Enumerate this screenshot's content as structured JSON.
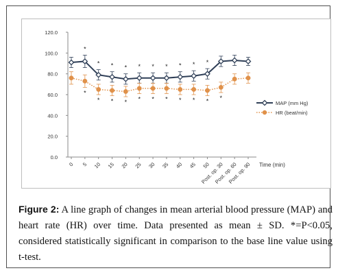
{
  "chart_data": {
    "type": "line",
    "categories": [
      "0",
      "5",
      "10",
      "15",
      "20",
      "25",
      "30",
      "35",
      "40",
      "45",
      "50",
      "Post. op. 30",
      "Post. op. 60",
      "Post. op. 90"
    ],
    "xlabel": "Time (min)",
    "ylabel": "",
    "ylim": [
      0,
      120
    ],
    "yticks": [
      "0.0",
      "20.0",
      "40.0",
      "60.0",
      "80.0",
      "100.0",
      "120.0"
    ],
    "grid": false,
    "legend_position": "right",
    "series": [
      {
        "name": "MAP (mm Hg)",
        "color": "#2f3f57",
        "marker": "diamond",
        "line_style": "solid",
        "values": [
          91,
          92,
          79,
          77,
          75,
          76,
          76,
          76,
          77,
          78,
          80,
          92,
          93,
          92
        ],
        "error": [
          5,
          6,
          5,
          5,
          5,
          5,
          5,
          5,
          5,
          5,
          5,
          5,
          5,
          4
        ],
        "significance": [
          "",
          "*",
          "*",
          "*",
          "*",
          "*",
          "*",
          "*",
          "*",
          "*",
          "*",
          "",
          "",
          ""
        ]
      },
      {
        "name": "HR (beat/min)",
        "color": "#e0914a",
        "marker": "circle",
        "line_style": "dotted",
        "values": [
          76,
          73,
          65,
          64,
          63,
          66,
          66,
          66,
          65,
          65,
          64,
          67,
          75,
          76
        ],
        "error": [
          6,
          6,
          5,
          5,
          5,
          5,
          5,
          5,
          5,
          5,
          5,
          5,
          5,
          5
        ],
        "significance": [
          "",
          "*",
          "*",
          "*",
          "*",
          "*",
          "*",
          "*",
          "*",
          "*",
          "*",
          "*",
          "",
          ""
        ]
      }
    ]
  },
  "caption": {
    "label": "Figure 2:",
    "text": " A line graph of changes in mean arterial blood pressure (MAP) and heart rate (HR) over time. Data presented as mean ± SD. *=P<0.05, considered statistically significant in comparison to the base line value using t-test."
  }
}
